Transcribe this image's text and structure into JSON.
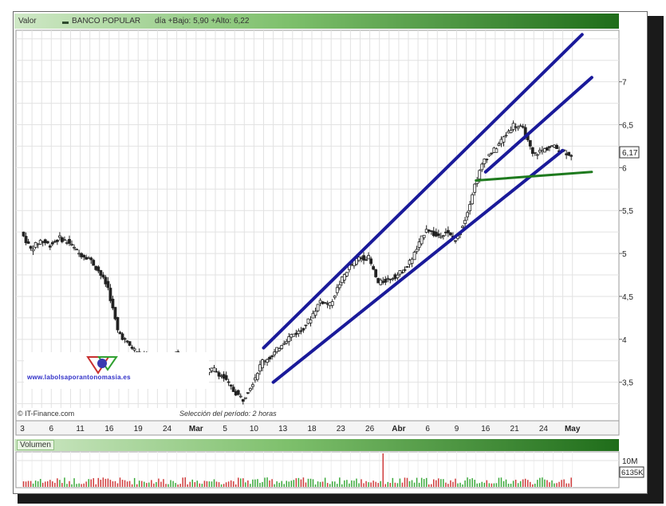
{
  "header": {
    "label": "Valor",
    "instrument": "BANCO POPULAR",
    "stats": "día +Bajo: 5,90 +Alto: 6,22"
  },
  "credit": "© IT-Finance.com",
  "period_note": "Selección del período: 2 horas",
  "watermark_text": "www.labolsaporantonomasia.es",
  "volume_panel": {
    "title": "Volumen",
    "axis_label": "10M",
    "last_volume": "6135K"
  },
  "colors": {
    "channel": "#1a1a9a",
    "support": "#1e7a1e",
    "candle_up": "#ffffff",
    "candle_down": "#222222",
    "volume_up": "#3caa3c",
    "volume_down": "#d03c3c"
  },
  "chart_data": {
    "type": "candlestick",
    "y_ticks": [
      "3,5",
      "4",
      "4,5",
      "5",
      "5,5",
      "6",
      "6,5",
      "7"
    ],
    "y_tick_values": [
      3.5,
      4.0,
      4.5,
      5.0,
      5.5,
      6.0,
      6.5,
      7.0
    ],
    "ylim": [
      3.2,
      7.6
    ],
    "x_tick_labels": [
      "3",
      "6",
      "11",
      "16",
      "19",
      "24",
      "Mar",
      "5",
      "10",
      "13",
      "18",
      "23",
      "26",
      "Abr",
      "6",
      "9",
      "16",
      "21",
      "24",
      "May"
    ],
    "x_tick_index": [
      0,
      3,
      6,
      9,
      12,
      15,
      18,
      21,
      24,
      27,
      30,
      33,
      36,
      39,
      42,
      45,
      48,
      51,
      54,
      57
    ],
    "x_count": 58,
    "last_price": "6,17",
    "last_price_value": 6.17,
    "close_path": [
      [
        0,
        5.25
      ],
      [
        1,
        5.05
      ],
      [
        2,
        5.15
      ],
      [
        3,
        5.1
      ],
      [
        4,
        5.18
      ],
      [
        5,
        5.12
      ],
      [
        6,
        5.0
      ],
      [
        7,
        4.95
      ],
      [
        8,
        4.8
      ],
      [
        9,
        4.6
      ],
      [
        10,
        4.1
      ],
      [
        11,
        3.95
      ],
      [
        12,
        3.85
      ],
      [
        13,
        3.8
      ],
      [
        14,
        3.75
      ],
      [
        15,
        3.7
      ],
      [
        16,
        3.85
      ],
      [
        17,
        3.75
      ],
      [
        18,
        3.6
      ],
      [
        19,
        3.62
      ],
      [
        20,
        3.65
      ],
      [
        21,
        3.55
      ],
      [
        22,
        3.4
      ],
      [
        23,
        3.3
      ],
      [
        24,
        3.5
      ],
      [
        25,
        3.75
      ],
      [
        26,
        3.8
      ],
      [
        27,
        3.95
      ],
      [
        28,
        4.05
      ],
      [
        29,
        4.1
      ],
      [
        30,
        4.25
      ],
      [
        31,
        4.45
      ],
      [
        32,
        4.4
      ],
      [
        33,
        4.65
      ],
      [
        34,
        4.85
      ],
      [
        35,
        4.95
      ],
      [
        36,
        4.95
      ],
      [
        37,
        4.65
      ],
      [
        38,
        4.7
      ],
      [
        39,
        4.75
      ],
      [
        40,
        4.85
      ],
      [
        41,
        5.05
      ],
      [
        42,
        5.3
      ],
      [
        43,
        5.2
      ],
      [
        44,
        5.25
      ],
      [
        45,
        5.15
      ],
      [
        46,
        5.4
      ],
      [
        47,
        5.8
      ],
      [
        48,
        6.1
      ],
      [
        49,
        6.2
      ],
      [
        50,
        6.35
      ],
      [
        51,
        6.5
      ],
      [
        52,
        6.45
      ],
      [
        53,
        6.15
      ],
      [
        54,
        6.2
      ],
      [
        55,
        6.25
      ],
      [
        56,
        6.2
      ],
      [
        57,
        6.15
      ]
    ],
    "channel_upper": [
      [
        25,
        3.9
      ],
      [
        58,
        7.55
      ]
    ],
    "channel_lower": [
      [
        26,
        3.5
      ],
      [
        56,
        6.2
      ]
    ],
    "channel_mid_break": [
      [
        48,
        5.95
      ],
      [
        59,
        7.05
      ]
    ],
    "support_line": [
      [
        47,
        5.85
      ],
      [
        59,
        5.95
      ]
    ]
  }
}
